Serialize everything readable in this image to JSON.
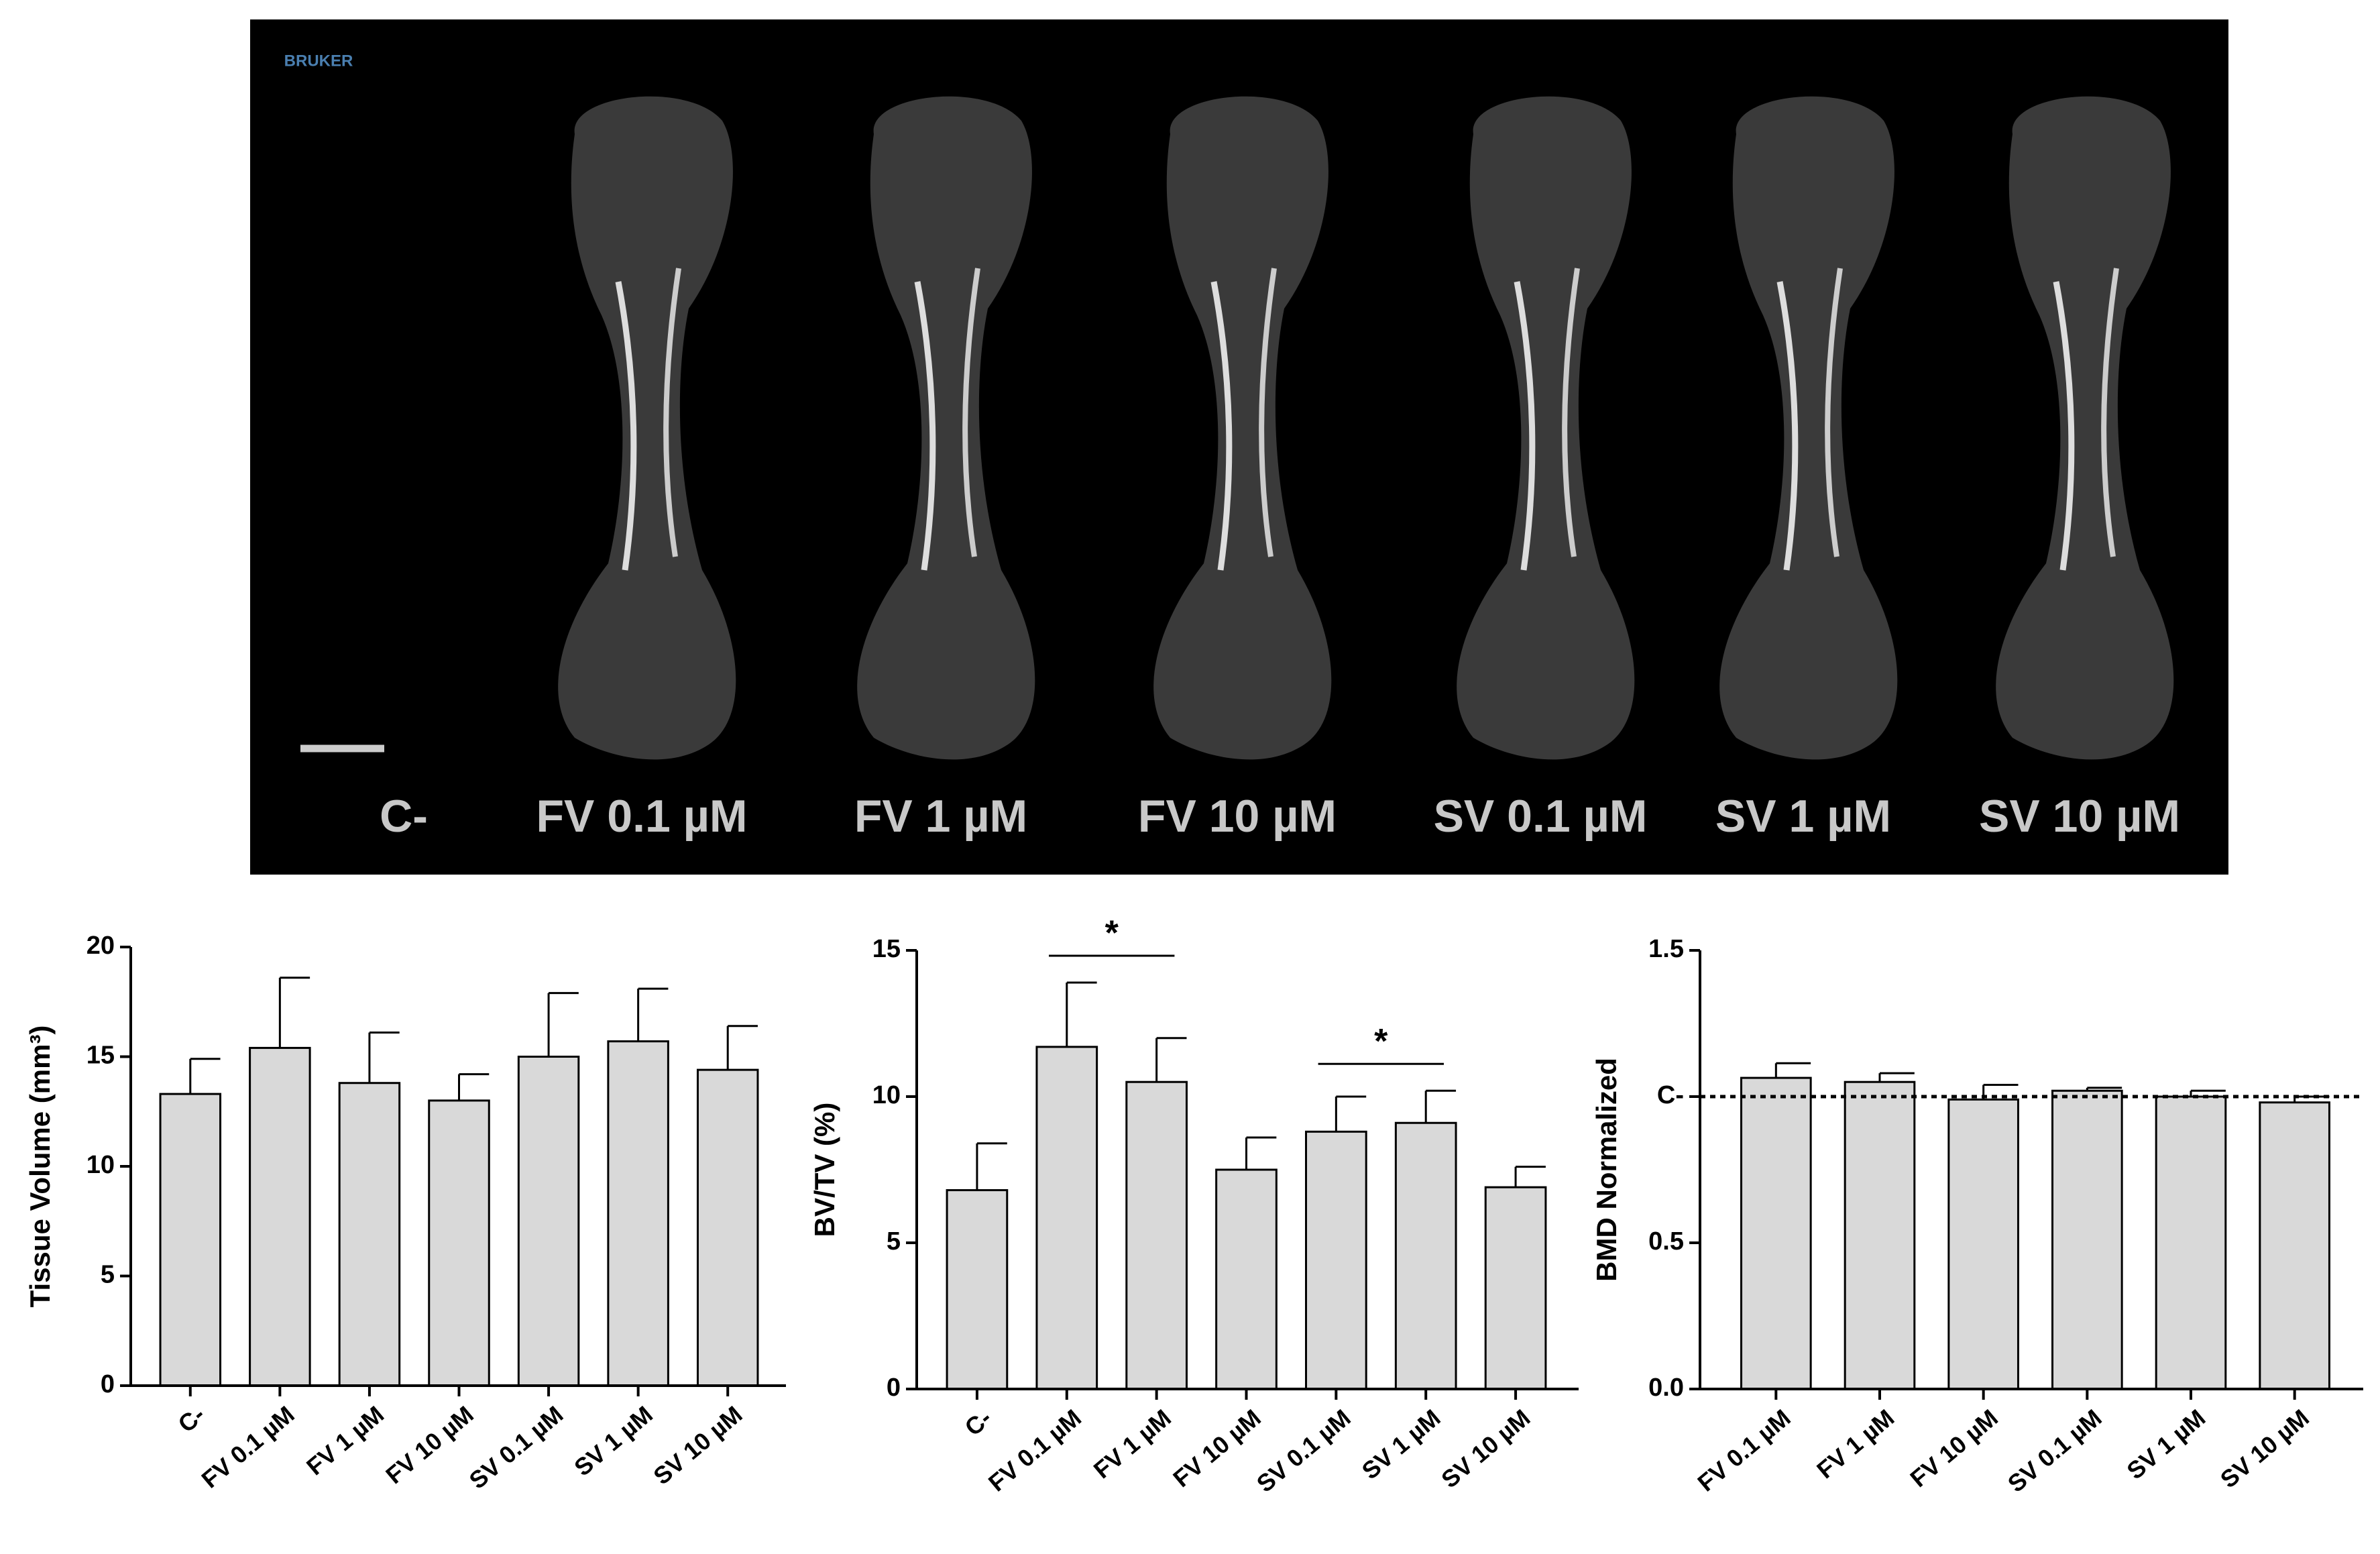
{
  "image": {
    "logo": "BRUKER",
    "labels": [
      "C-",
      "FV 0.1 µM",
      "FV 1 µM",
      "FV 10 µM",
      "SV 0.1 µM",
      "SV 1 µM",
      "SV 10 µM"
    ]
  },
  "chart_data": [
    {
      "type": "bar",
      "ylabel": "Tissue Volume (mm³)",
      "categories": [
        "C-",
        "FV 0.1 µM",
        "FV 1 µM",
        "FV 10 µM",
        "SV 0.1 µM",
        "SV 1 µM",
        "SV 10 µM"
      ],
      "values": [
        13.3,
        15.4,
        13.8,
        13.0,
        15.0,
        15.7,
        14.4
      ],
      "errors": [
        1.6,
        3.2,
        2.3,
        1.2,
        2.9,
        2.4,
        2.0
      ],
      "color": "#d9d9d9",
      "ylim": [
        0,
        20
      ],
      "yticks": [
        0,
        5,
        10,
        15,
        20
      ]
    },
    {
      "type": "bar",
      "ylabel": "BV/TV (%)",
      "categories": [
        "C-",
        "FV 0.1 µM",
        "FV 1 µM",
        "FV 10 µM",
        "SV  0.1 µM",
        "SV  1 µM",
        "SV  10 µM"
      ],
      "values": [
        6.8,
        11.7,
        10.5,
        7.5,
        8.8,
        9.1,
        6.9
      ],
      "errors": [
        1.6,
        2.2,
        1.5,
        1.1,
        1.2,
        1.1,
        0.7
      ],
      "color": "#d9d9d9",
      "ylim": [
        0,
        15
      ],
      "yticks": [
        0,
        5,
        10,
        15
      ],
      "annotations": [
        "*",
        "*"
      ]
    },
    {
      "type": "bar",
      "ylabel": "BMD Normalized",
      "categories": [
        "FV 0.1 µM",
        "FV 1 µM",
        "FV 10 µM",
        "SV 0.1 µM",
        "SV 1 µM",
        "SV 10 µM"
      ],
      "values": [
        1.064,
        1.05,
        0.99,
        1.02,
        1.0,
        0.98
      ],
      "errors": [
        0.05,
        0.03,
        0.05,
        0.01,
        0.02,
        0.02
      ],
      "color": "#d9d9d9",
      "ylim": [
        0,
        1.5
      ],
      "yticks": [
        {
          "value": 0,
          "label": "0.0"
        },
        0.5,
        {
          "value": 1,
          "label": "C-"
        },
        1.5
      ],
      "reference_line": 1
    }
  ]
}
